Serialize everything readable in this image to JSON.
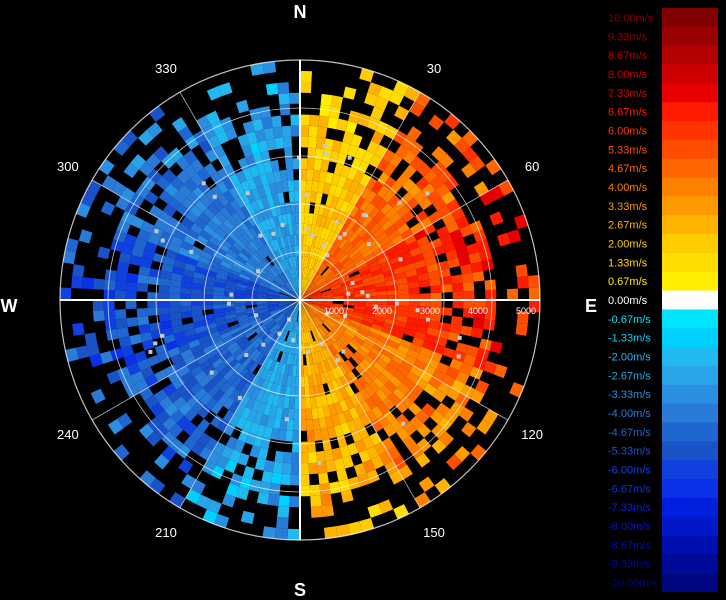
{
  "chart_data": {
    "type": "polar-velocity",
    "compass": {
      "north": "N",
      "east": "E",
      "south": "S",
      "west": "W"
    },
    "azimuth_labels": [
      "30",
      "60",
      "120",
      "150",
      "210",
      "240",
      "300",
      "330"
    ],
    "azimuth_values": [
      30,
      60,
      120,
      150,
      210,
      240,
      300,
      330
    ],
    "range_labels": [
      "1000",
      "2000",
      "3000",
      "4000",
      "5000"
    ],
    "range_values": [
      1000,
      2000,
      3000,
      4000,
      5000
    ],
    "range_max": 5000,
    "grid": true,
    "velocity_limits": [
      -10.0,
      10.0
    ],
    "velocity_field": {
      "description_sectors": [
        {
          "az_from": 0,
          "az_to": 30,
          "velocity": 2.0
        },
        {
          "az_from": 30,
          "az_to": 60,
          "velocity": 4.67
        },
        {
          "az_from": 60,
          "az_to": 110,
          "velocity": 6.0
        },
        {
          "az_from": 110,
          "az_to": 150,
          "velocity": 4.0
        },
        {
          "az_from": 150,
          "az_to": 180,
          "velocity": 2.67
        },
        {
          "az_from": 180,
          "az_to": 210,
          "velocity": -2.67
        },
        {
          "az_from": 210,
          "az_to": 250,
          "velocity": -4.67
        },
        {
          "az_from": 250,
          "az_to": 290,
          "velocity": -5.33
        },
        {
          "az_from": 290,
          "az_to": 330,
          "velocity": -4.0
        },
        {
          "az_from": 330,
          "az_to": 360,
          "velocity": -2.67
        }
      ]
    },
    "legend": {
      "position": "right",
      "entries": [
        {
          "label": "10.00m/s",
          "value": 10.0,
          "color": "#800000"
        },
        {
          "label": "9.33m/s",
          "value": 9.33,
          "color": "#990000"
        },
        {
          "label": "8.67m/s",
          "value": 8.67,
          "color": "#b30000"
        },
        {
          "label": "8.00m/s",
          "value": 8.0,
          "color": "#cc0000"
        },
        {
          "label": "7.33m/s",
          "value": 7.33,
          "color": "#e60000"
        },
        {
          "label": "6.67m/s",
          "value": 6.67,
          "color": "#ff1a00"
        },
        {
          "label": "6.00m/s",
          "value": 6.0,
          "color": "#ff3300"
        },
        {
          "label": "5.33m/s",
          "value": 5.33,
          "color": "#ff4d00"
        },
        {
          "label": "4.67m/s",
          "value": 4.67,
          "color": "#ff6600"
        },
        {
          "label": "4.00m/s",
          "value": 4.0,
          "color": "#ff8000"
        },
        {
          "label": "3.33m/s",
          "value": 3.33,
          "color": "#ff9900"
        },
        {
          "label": "2.67m/s",
          "value": 2.67,
          "color": "#ffb300"
        },
        {
          "label": "2.00m/s",
          "value": 2.0,
          "color": "#ffcc00"
        },
        {
          "label": "1.33m/s",
          "value": 1.33,
          "color": "#ffdd00"
        },
        {
          "label": "0.67m/s",
          "value": 0.67,
          "color": "#ffee00"
        },
        {
          "label": "0.00m/s",
          "value": 0.0,
          "color": "#ffffff"
        },
        {
          "label": "-0.67m/s",
          "value": -0.67,
          "color": "#00e5ff"
        },
        {
          "label": "-1.33m/s",
          "value": -1.33,
          "color": "#00d0ff"
        },
        {
          "label": "-2.00m/s",
          "value": -2.0,
          "color": "#22b8f0"
        },
        {
          "label": "-2.67m/s",
          "value": -2.67,
          "color": "#2aa4e8"
        },
        {
          "label": "-3.33m/s",
          "value": -3.33,
          "color": "#2a8fe0"
        },
        {
          "label": "-4.00m/s",
          "value": -4.0,
          "color": "#2a7ad8"
        },
        {
          "label": "-4.67m/s",
          "value": -4.67,
          "color": "#1f66d0"
        },
        {
          "label": "-5.33m/s",
          "value": -5.33,
          "color": "#1a52c8"
        },
        {
          "label": "-6.00m/s",
          "value": -6.0,
          "color": "#1040e0"
        },
        {
          "label": "-6.67m/s",
          "value": -6.67,
          "color": "#0a30e8"
        },
        {
          "label": "-7.33m/s",
          "value": -7.33,
          "color": "#0020e0"
        },
        {
          "label": "-8.00m/s",
          "value": -8.0,
          "color": "#0018c8"
        },
        {
          "label": "-8.67m/s",
          "value": -8.67,
          "color": "#0010b0"
        },
        {
          "label": "-9.33m/s",
          "value": -9.33,
          "color": "#000a98"
        },
        {
          "label": "-10.00m/s",
          "value": -10.0,
          "color": "#000580"
        }
      ]
    }
  }
}
